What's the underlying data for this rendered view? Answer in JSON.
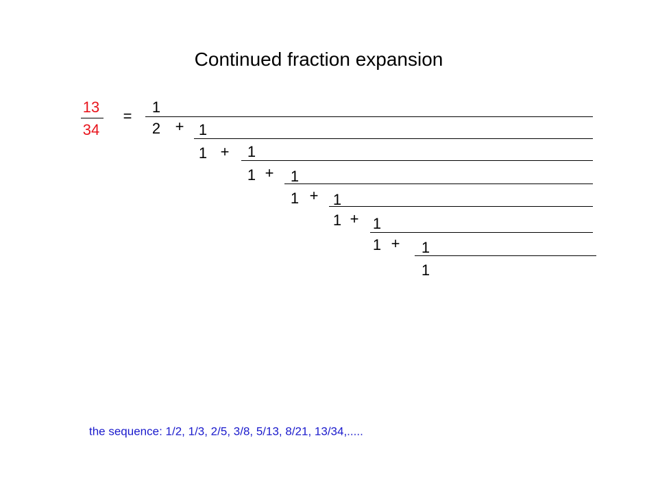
{
  "title": "Continued fraction expansion",
  "fraction": {
    "numerator": "13",
    "denominator": "34",
    "equals": "="
  },
  "levels": [
    {
      "numerator": "1",
      "denominator": "2",
      "op": "+"
    },
    {
      "numerator": "1",
      "denominator": "1",
      "op": "+"
    },
    {
      "numerator": "1",
      "denominator": "1",
      "op": "+"
    },
    {
      "numerator": "1",
      "denominator": "1",
      "op": "+"
    },
    {
      "numerator": "1",
      "denominator": "1",
      "op": "+"
    },
    {
      "numerator": "1",
      "denominator": "1",
      "op": "+"
    },
    {
      "numerator": "1",
      "denominator": "1"
    }
  ],
  "footer": "the sequence: 1/2, 1/3, 2/5, 3/8, 5/13, 8/21, 13/34,....."
}
